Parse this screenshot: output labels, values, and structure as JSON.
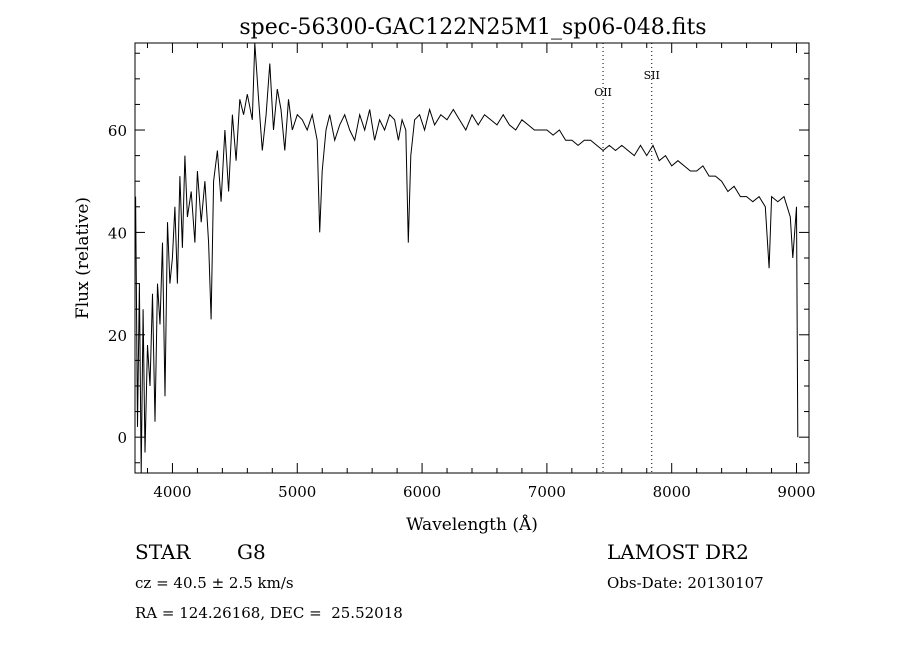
{
  "chart_data": {
    "type": "line",
    "title": "spec-56300-GAC122N25M1_sp06-048.fits",
    "xlabel": "Wavelength (Å)",
    "ylabel": "Flux (relative)",
    "xlim": [
      3700,
      9100
    ],
    "ylim": [
      -7,
      77
    ],
    "x_ticks": [
      4000,
      5000,
      6000,
      7000,
      8000,
      9000
    ],
    "y_ticks": [
      0,
      20,
      40,
      60
    ],
    "grid": false,
    "legend": "none",
    "line_color": "#000000",
    "lines": [
      {
        "label": "OII",
        "x": 7450
      },
      {
        "label": "SII",
        "x": 7840
      }
    ],
    "series": [
      {
        "points": [
          [
            3705,
            47
          ],
          [
            3720,
            2
          ],
          [
            3735,
            30
          ],
          [
            3750,
            -8
          ],
          [
            3765,
            25
          ],
          [
            3780,
            -3
          ],
          [
            3800,
            18
          ],
          [
            3820,
            10
          ],
          [
            3840,
            28
          ],
          [
            3860,
            3
          ],
          [
            3880,
            30
          ],
          [
            3900,
            22
          ],
          [
            3920,
            38
          ],
          [
            3940,
            8
          ],
          [
            3960,
            42
          ],
          [
            3980,
            30
          ],
          [
            4000,
            35
          ],
          [
            4020,
            45
          ],
          [
            4040,
            30
          ],
          [
            4060,
            51
          ],
          [
            4080,
            37
          ],
          [
            4100,
            55
          ],
          [
            4120,
            43
          ],
          [
            4150,
            48
          ],
          [
            4180,
            38
          ],
          [
            4200,
            52
          ],
          [
            4230,
            42
          ],
          [
            4260,
            50
          ],
          [
            4290,
            38
          ],
          [
            4310,
            23
          ],
          [
            4330,
            50
          ],
          [
            4360,
            56
          ],
          [
            4390,
            46
          ],
          [
            4420,
            60
          ],
          [
            4450,
            48
          ],
          [
            4480,
            63
          ],
          [
            4510,
            54
          ],
          [
            4540,
            66
          ],
          [
            4570,
            63
          ],
          [
            4600,
            67
          ],
          [
            4640,
            62
          ],
          [
            4660,
            77
          ],
          [
            4690,
            66
          ],
          [
            4720,
            56
          ],
          [
            4750,
            63
          ],
          [
            4780,
            73
          ],
          [
            4810,
            60
          ],
          [
            4840,
            68
          ],
          [
            4870,
            64
          ],
          [
            4900,
            56
          ],
          [
            4930,
            66
          ],
          [
            4960,
            60
          ],
          [
            5000,
            63
          ],
          [
            5040,
            62
          ],
          [
            5080,
            60
          ],
          [
            5120,
            63
          ],
          [
            5160,
            58
          ],
          [
            5180,
            40
          ],
          [
            5200,
            52
          ],
          [
            5230,
            60
          ],
          [
            5260,
            63
          ],
          [
            5300,
            58
          ],
          [
            5340,
            61
          ],
          [
            5380,
            63
          ],
          [
            5420,
            60
          ],
          [
            5460,
            58
          ],
          [
            5500,
            63
          ],
          [
            5540,
            60
          ],
          [
            5580,
            64
          ],
          [
            5620,
            58
          ],
          [
            5660,
            62
          ],
          [
            5700,
            60
          ],
          [
            5740,
            63
          ],
          [
            5780,
            62
          ],
          [
            5810,
            58
          ],
          [
            5840,
            62
          ],
          [
            5870,
            60
          ],
          [
            5890,
            38
          ],
          [
            5910,
            55
          ],
          [
            5940,
            62
          ],
          [
            5980,
            63
          ],
          [
            6020,
            60
          ],
          [
            6060,
            64
          ],
          [
            6100,
            61
          ],
          [
            6150,
            63
          ],
          [
            6200,
            62
          ],
          [
            6250,
            64
          ],
          [
            6300,
            62
          ],
          [
            6350,
            60
          ],
          [
            6400,
            63
          ],
          [
            6450,
            61
          ],
          [
            6500,
            63
          ],
          [
            6550,
            62
          ],
          [
            6600,
            61
          ],
          [
            6650,
            63
          ],
          [
            6700,
            61
          ],
          [
            6750,
            60
          ],
          [
            6800,
            62
          ],
          [
            6850,
            61
          ],
          [
            6900,
            60
          ],
          [
            6950,
            60
          ],
          [
            7000,
            60
          ],
          [
            7050,
            59
          ],
          [
            7100,
            60
          ],
          [
            7150,
            58
          ],
          [
            7200,
            58
          ],
          [
            7250,
            57
          ],
          [
            7300,
            58
          ],
          [
            7350,
            58
          ],
          [
            7400,
            57
          ],
          [
            7450,
            56
          ],
          [
            7500,
            57
          ],
          [
            7550,
            56
          ],
          [
            7600,
            57
          ],
          [
            7650,
            56
          ],
          [
            7700,
            55
          ],
          [
            7750,
            57
          ],
          [
            7800,
            55
          ],
          [
            7850,
            57
          ],
          [
            7900,
            54
          ],
          [
            7950,
            55
          ],
          [
            8000,
            53
          ],
          [
            8050,
            54
          ],
          [
            8100,
            53
          ],
          [
            8150,
            52
          ],
          [
            8200,
            52
          ],
          [
            8250,
            53
          ],
          [
            8300,
            51
          ],
          [
            8350,
            51
          ],
          [
            8400,
            50
          ],
          [
            8450,
            48
          ],
          [
            8500,
            49
          ],
          [
            8550,
            47
          ],
          [
            8600,
            47
          ],
          [
            8650,
            46
          ],
          [
            8700,
            47
          ],
          [
            8750,
            45
          ],
          [
            8780,
            33
          ],
          [
            8800,
            47
          ],
          [
            8850,
            46
          ],
          [
            8900,
            47
          ],
          [
            8950,
            43
          ],
          [
            8970,
            35
          ],
          [
            9000,
            45
          ],
          [
            9010,
            0
          ]
        ]
      }
    ]
  },
  "info": {
    "object_type": "STAR",
    "subclass": "G8",
    "survey": "LAMOST DR2",
    "redshift_line": "cz = 40.5 ± 2.5 km/s",
    "obs_date": "Obs-Date: 20130107",
    "coords_line": "RA = 124.26168, DEC =  25.52018"
  }
}
